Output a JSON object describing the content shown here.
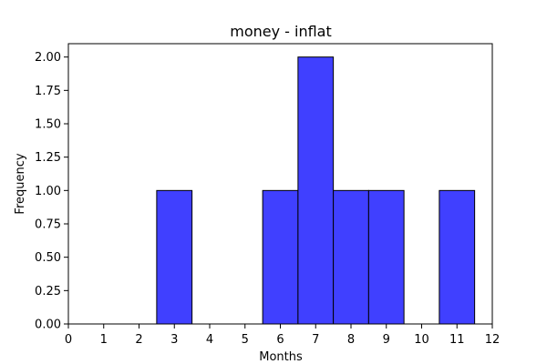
{
  "chart_data": {
    "type": "bar",
    "title": "money - inflat",
    "xlabel": "Months",
    "ylabel": "Frequency",
    "xlim": [
      0,
      12
    ],
    "ylim": [
      0,
      2.1
    ],
    "bar_width": 1,
    "x": [
      3,
      6,
      7,
      8,
      9,
      11
    ],
    "values": [
      1,
      1,
      2,
      1,
      1,
      1
    ],
    "x_ticks": [
      0,
      1,
      2,
      3,
      4,
      5,
      6,
      7,
      8,
      9,
      10,
      11,
      12
    ],
    "x_tick_labels": [
      "0",
      "1",
      "2",
      "3",
      "4",
      "5",
      "6",
      "7",
      "8",
      "9",
      "10",
      "11",
      "12"
    ],
    "y_ticks": [
      0,
      0.25,
      0.5,
      0.75,
      1.0,
      1.25,
      1.5,
      1.75,
      2.0
    ],
    "y_tick_labels": [
      "0.00",
      "0.25",
      "0.50",
      "0.75",
      "1.00",
      "1.25",
      "1.50",
      "1.75",
      "2.00"
    ],
    "grid": false,
    "bar_color": "#4040ff",
    "edge_color": "#000000"
  }
}
